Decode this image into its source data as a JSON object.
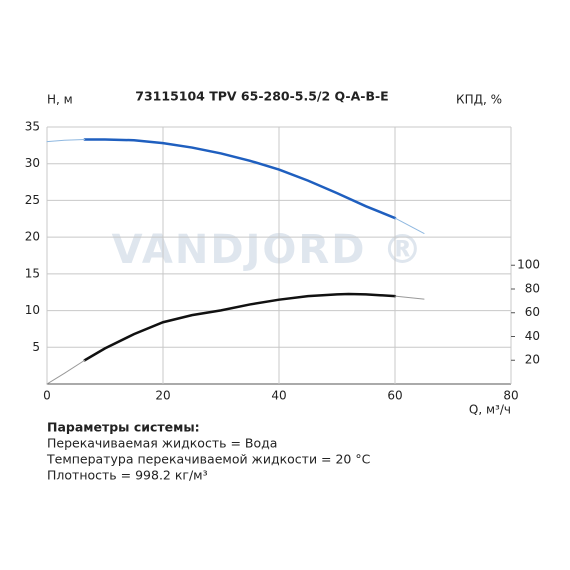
{
  "chart_data": {
    "type": "line",
    "title": "73115104 TPV 65-280-5.5/2 Q-A-B-E",
    "watermark": "VANDJORD ®",
    "y_label": "H, м",
    "y2_label": "КПД, %",
    "x_label": "Q, м³/ч",
    "xlim": [
      0,
      80
    ],
    "xticks": [
      0,
      20,
      40,
      60,
      80
    ],
    "ylim": [
      0,
      35
    ],
    "yticks": [
      5,
      10,
      15,
      20,
      25,
      30,
      35
    ],
    "y2lim": [
      0,
      216.4
    ],
    "y2ticks": [
      20,
      40,
      60,
      80,
      100
    ],
    "grid": true,
    "series": [
      {
        "color": "#1f5fbf",
        "line_width": 2.5,
        "x": [
          6.5,
          10,
          15,
          20,
          25,
          30,
          35,
          40,
          45,
          50,
          55,
          60
        ],
        "values": [
          33.3,
          33.3,
          33.2,
          32.8,
          32.2,
          31.4,
          30.4,
          29.2,
          27.7,
          26.0,
          24.2,
          22.6
        ]
      },
      {
        "color": "#8fb8e0",
        "line_width": 1,
        "x": [
          0,
          3,
          6.5
        ],
        "values": [
          33.0,
          33.2,
          33.3
        ]
      },
      {
        "color": "#8fb8e0",
        "line_width": 1,
        "x": [
          60,
          65
        ],
        "values": [
          22.6,
          20.5
        ]
      },
      {
        "color": "#111111",
        "line_width": 2.5,
        "axis": "y2",
        "x": [
          6.5,
          10,
          15,
          20,
          25,
          30,
          35,
          40,
          45,
          50,
          52,
          55,
          60
        ],
        "values": [
          20,
          30,
          42,
          52,
          58,
          62,
          67,
          71,
          74,
          75.5,
          75.8,
          75.5,
          74
        ]
      },
      {
        "color": "#999999",
        "line_width": 1,
        "axis": "y2",
        "x": [
          0,
          3,
          6.5
        ],
        "values": [
          0,
          9,
          20
        ]
      },
      {
        "color": "#999999",
        "line_width": 1,
        "axis": "y2",
        "x": [
          60,
          65
        ],
        "values": [
          74,
          71.5
        ]
      }
    ]
  },
  "parameters": {
    "title": "Параметры системы:",
    "lines": [
      "Перекачиваемая жидкость = Вода",
      "Температура перекачиваемой жидкости = 20 °C",
      "Плотность = 998.2 кг/м³"
    ]
  }
}
